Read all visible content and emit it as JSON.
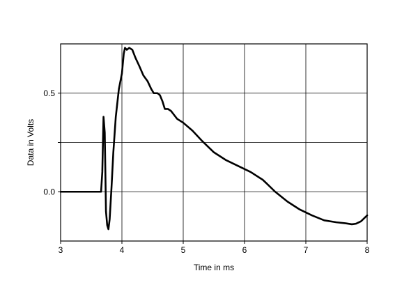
{
  "chart_data": {
    "type": "line",
    "title": "",
    "xlabel": "Time in ms",
    "ylabel": "Data in Volts",
    "xlim": [
      3,
      8
    ],
    "ylim": [
      -0.25,
      0.75
    ],
    "grid": true,
    "x_ticks": [
      3,
      4,
      5,
      6,
      7,
      8
    ],
    "x_tick_labels": [
      "3",
      "4",
      "5",
      "6",
      "7",
      "8"
    ],
    "y_ticks": [
      0.0,
      0.25,
      0.5
    ],
    "y_tick_labels": [
      "0.0",
      "",
      "0.5"
    ],
    "series": [
      {
        "color": "#000000",
        "x": [
          3.0,
          3.5,
          3.66,
          3.68,
          3.7,
          3.72,
          3.74,
          3.76,
          3.78,
          3.8,
          3.83,
          3.86,
          3.9,
          3.95,
          4.0,
          4.03,
          4.05,
          4.08,
          4.12,
          4.17,
          4.22,
          4.28,
          4.35,
          4.42,
          4.48,
          4.52,
          4.58,
          4.62,
          4.66,
          4.7,
          4.75,
          4.8,
          4.85,
          4.9,
          5.0,
          5.15,
          5.3,
          5.5,
          5.7,
          5.9,
          6.1,
          6.3,
          6.5,
          6.7,
          6.9,
          7.1,
          7.3,
          7.5,
          7.65,
          7.75,
          7.82,
          7.9,
          8.0
        ],
        "y": [
          0.0,
          0.0,
          0.0,
          0.1,
          0.38,
          0.3,
          -0.1,
          -0.17,
          -0.19,
          -0.14,
          0.02,
          0.2,
          0.38,
          0.52,
          0.6,
          0.7,
          0.73,
          0.72,
          0.73,
          0.72,
          0.68,
          0.64,
          0.59,
          0.56,
          0.52,
          0.5,
          0.5,
          0.49,
          0.46,
          0.42,
          0.42,
          0.41,
          0.39,
          0.37,
          0.35,
          0.31,
          0.26,
          0.2,
          0.16,
          0.13,
          0.1,
          0.06,
          0.0,
          -0.05,
          -0.09,
          -0.12,
          -0.145,
          -0.155,
          -0.16,
          -0.165,
          -0.162,
          -0.15,
          -0.12
        ]
      }
    ]
  }
}
